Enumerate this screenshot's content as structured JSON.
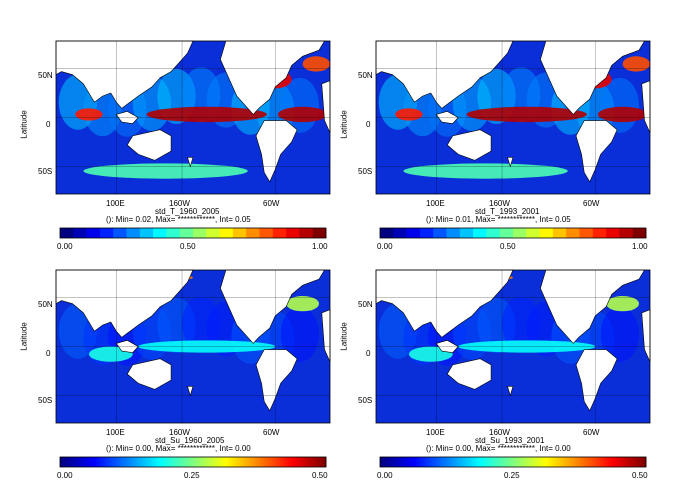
{
  "panels": [
    {
      "id": "std_T_1960_2005",
      "ylabel": "Latitude",
      "lat_ticks": [
        "50N",
        "0",
        "50S"
      ],
      "lon_ticks": [
        "100E",
        "160W",
        "60W"
      ],
      "title": "std_T_1960_2005",
      "stats": "(): Min= 0.02, Max= ************, Int= 0.05",
      "colorbar": {
        "min": "0.00",
        "mid": "0.50",
        "max": "1.00",
        "steps": 20
      },
      "field": "temperature"
    },
    {
      "id": "std_T_1993_2001",
      "ylabel": "Latitude",
      "lat_ticks": [
        "50N",
        "0",
        "50S"
      ],
      "lon_ticks": [
        "100E",
        "160W",
        "60W"
      ],
      "title": "std_T_1993_2001",
      "stats": "(): Min= 0.01, Max= ************, Int= 0.05",
      "colorbar": {
        "min": "0.00",
        "mid": "0.50",
        "max": "1.00",
        "steps": 20
      },
      "field": "temperature"
    },
    {
      "id": "std_Su_1960_2005",
      "ylabel": "Latitude",
      "lat_ticks": [
        "50N",
        "0",
        "50S"
      ],
      "lon_ticks": [
        "100E",
        "160W",
        "60W"
      ],
      "title": "std_Su_1960_2005",
      "stats": "(): Min= 0.00, Max= ************, Int= 0.00",
      "colorbar": {
        "min": "0.00",
        "mid": "0.25",
        "max": "0.50",
        "steps": 0
      },
      "field": "current"
    },
    {
      "id": "std_Su_1993_2001",
      "ylabel": "Latitude",
      "lat_ticks": [
        "50N",
        "0",
        "50S"
      ],
      "lon_ticks": [
        "100E",
        "160W",
        "60W"
      ],
      "title": "std_Su_1993_2001",
      "stats": "(): Min= 0.00, Max= ************, Int= 0.00",
      "colorbar": {
        "min": "0.00",
        "mid": "0.25",
        "max": "0.50",
        "steps": 0
      },
      "field": "current"
    }
  ],
  "colors": {
    "ocean_low": "#0a2fd8",
    "ocean_mid": "#1e90ff",
    "land": "#ffffff",
    "coast": "#000000"
  }
}
